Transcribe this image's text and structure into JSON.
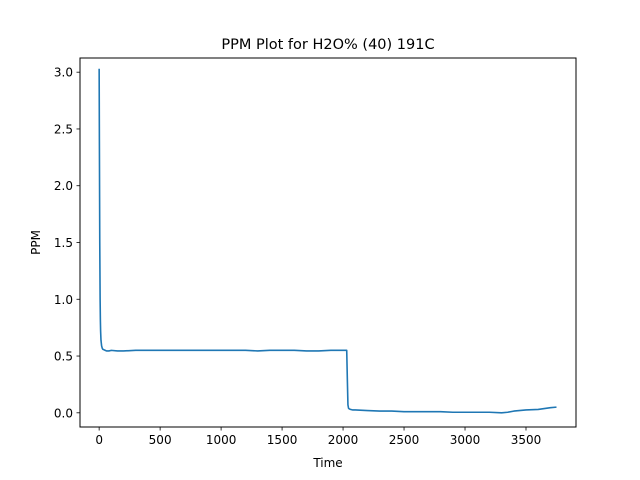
{
  "chart_data": {
    "type": "line",
    "title": "PPM Plot for H2O% (40) 191C",
    "xlabel": "Time",
    "ylabel": "PPM",
    "xlim": [
      -157,
      3910
    ],
    "ylim": [
      -0.125,
      3.125
    ],
    "xticks": [
      0,
      500,
      1000,
      1500,
      2000,
      2500,
      3000,
      3500
    ],
    "yticks": [
      0.0,
      0.5,
      1.0,
      1.5,
      2.0,
      2.5,
      3.0
    ],
    "ytick_labels": [
      "0.0",
      "0.5",
      "1.0",
      "1.5",
      "2.0",
      "2.5",
      "3.0"
    ],
    "grid": false,
    "legend": "none",
    "series": [
      {
        "color": "#1f77b4",
        "x": [
          0,
          2,
          5,
          8,
          10,
          12,
          15,
          20,
          25,
          30,
          40,
          50,
          60,
          80,
          100,
          150,
          200,
          300,
          400,
          500,
          600,
          700,
          800,
          900,
          1000,
          1100,
          1200,
          1300,
          1400,
          1500,
          1600,
          1700,
          1800,
          1900,
          2000,
          2030,
          2035,
          2040,
          2045,
          2050,
          2060,
          2080,
          2100,
          2200,
          2300,
          2400,
          2500,
          2600,
          2700,
          2800,
          2900,
          3000,
          3100,
          3200,
          3300,
          3350,
          3400,
          3500,
          3600,
          3700,
          3750
        ],
        "y": [
          3.03,
          2.4,
          1.5,
          1.0,
          0.82,
          0.72,
          0.64,
          0.59,
          0.57,
          0.56,
          0.555,
          0.55,
          0.545,
          0.545,
          0.55,
          0.545,
          0.545,
          0.55,
          0.55,
          0.55,
          0.55,
          0.55,
          0.55,
          0.55,
          0.55,
          0.55,
          0.55,
          0.545,
          0.55,
          0.55,
          0.55,
          0.545,
          0.545,
          0.55,
          0.55,
          0.55,
          0.3,
          0.07,
          0.04,
          0.035,
          0.03,
          0.025,
          0.025,
          0.02,
          0.015,
          0.015,
          0.01,
          0.01,
          0.01,
          0.01,
          0.005,
          0.005,
          0.005,
          0.005,
          0.0,
          0.005,
          0.015,
          0.025,
          0.03,
          0.045,
          0.05
        ]
      }
    ]
  }
}
